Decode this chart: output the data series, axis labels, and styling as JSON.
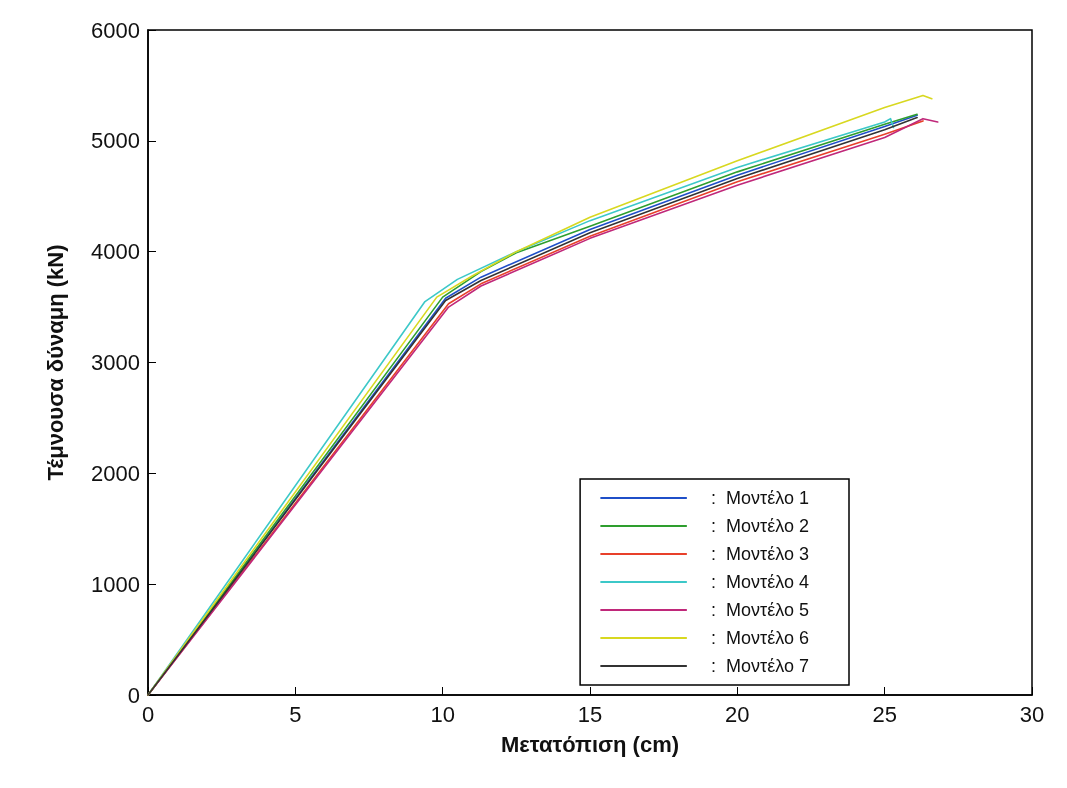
{
  "chart_data": {
    "type": "line",
    "xlabel": "Μετατόπιση (cm)",
    "ylabel": "Τέμνουσα δύναμη (kN)",
    "xlim": [
      0,
      30
    ],
    "xticks": [
      0,
      5,
      10,
      15,
      20,
      25,
      30
    ],
    "ylim": [
      0,
      6000
    ],
    "yticks": [
      0,
      1000,
      2000,
      3000,
      4000,
      5000,
      6000
    ],
    "grid": false,
    "legend": "bottom right",
    "marker": "none",
    "line_style": "solid",
    "series": [
      {
        "name": ":  Μοντέλο 1",
        "color": "#1f4fc8",
        "x": [
          0,
          10.1,
          11.3,
          15,
          20,
          25,
          26.1
        ],
        "values": [
          0,
          3580,
          3770,
          4200,
          4690,
          5130,
          5230
        ]
      },
      {
        "name": ":  Μοντέλο 2",
        "color": "#2e9e2e",
        "x": [
          0,
          10.0,
          11.3,
          12.5,
          15,
          20,
          25,
          26.1
        ],
        "values": [
          0,
          3590,
          3820,
          3990,
          4230,
          4720,
          5150,
          5240
        ]
      },
      {
        "name": ":  Μοντέλο 3",
        "color": "#e8402a",
        "x": [
          0,
          10.2,
          11.3,
          15,
          20,
          25,
          26.3
        ],
        "values": [
          0,
          3530,
          3710,
          4140,
          4630,
          5060,
          5180
        ]
      },
      {
        "name": ":  Μοντέλο 4",
        "color": "#3cc8c8",
        "x": [
          0,
          9.4,
          10.5,
          12.5,
          15,
          20,
          25,
          25.2,
          25.3
        ],
        "values": [
          0,
          3550,
          3750,
          4000,
          4280,
          4760,
          5170,
          5200,
          5120
        ]
      },
      {
        "name": ":  Μοντέλο 5",
        "color": "#c0287a",
        "x": [
          0,
          10.2,
          11.3,
          15,
          20,
          25,
          26.3,
          26.8
        ],
        "values": [
          0,
          3500,
          3690,
          4120,
          4600,
          5030,
          5200,
          5170
        ]
      },
      {
        "name": ":  Μοντέλο 6",
        "color": "#d8d820",
        "x": [
          0,
          9.8,
          11,
          12.5,
          15,
          20,
          25,
          26.3,
          26.6
        ],
        "values": [
          0,
          3590,
          3780,
          4000,
          4310,
          4820,
          5300,
          5410,
          5380
        ]
      },
      {
        "name": ":  Μοντέλο 7",
        "color": "#333333",
        "x": [
          0,
          10.1,
          11.3,
          15,
          20,
          25,
          26.1
        ],
        "values": [
          0,
          3560,
          3740,
          4170,
          4660,
          5100,
          5210
        ]
      }
    ]
  }
}
